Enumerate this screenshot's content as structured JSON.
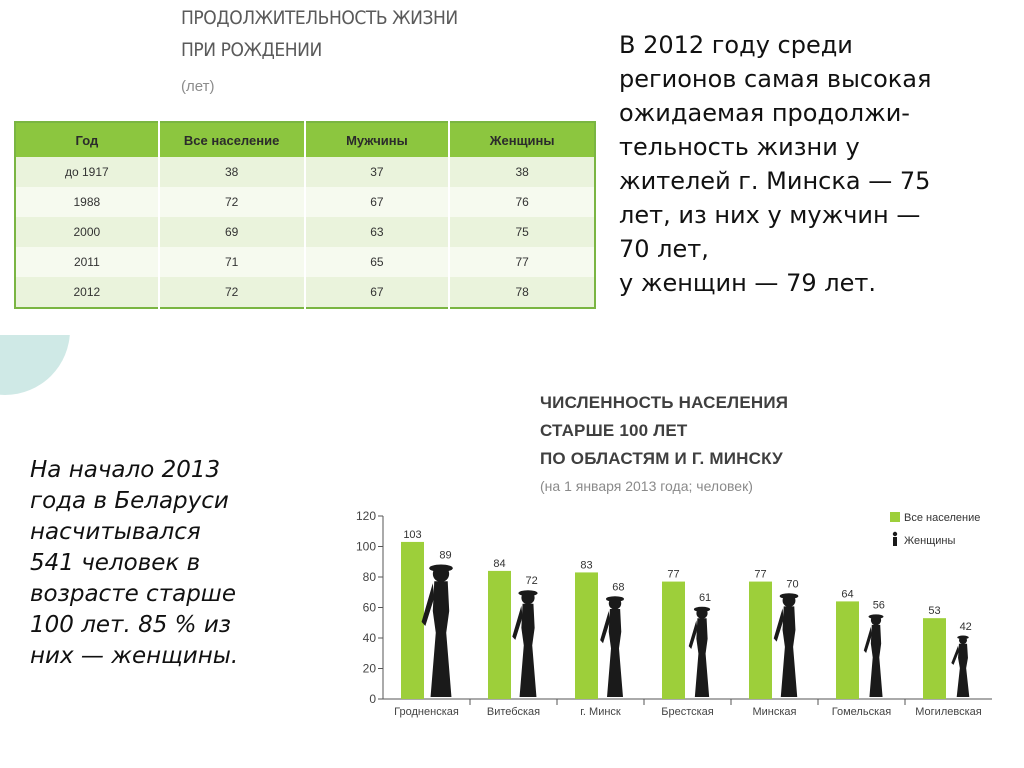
{
  "table_section": {
    "title_lines": [
      "ПРОДОЛЖИТЕЛЬНОСТЬ ЖИЗНИ",
      "ПРИ РОЖДЕНИИ"
    ],
    "unit": "(лет)",
    "headers": [
      "Год",
      "Все население",
      "Мужчины",
      "Женщины"
    ],
    "rows": [
      [
        "до 1917",
        "38",
        "37",
        "38"
      ],
      [
        "1988",
        "72",
        "67",
        "76"
      ],
      [
        "2000",
        "69",
        "63",
        "75"
      ],
      [
        "2011",
        "71",
        "65",
        "77"
      ],
      [
        "2012",
        "72",
        "67",
        "78"
      ]
    ]
  },
  "minsk_text": {
    "lines": [
      "В 2012 году среди",
      "регионов самая высокая",
      "ожидаемая продолжи-",
      "тельность жизни у",
      "жителей г. Минска — 75",
      "лет, из них у мужчин —",
      "70 лет,",
      "у женщин — 79 лет."
    ]
  },
  "centenarian_text": {
    "lines": [
      "На начало 2013",
      "года в Беларуси",
      "насчитывался",
      "541 человек в",
      "возрасте старше",
      "100 лет. 85 % из",
      "них — женщины."
    ]
  },
  "chart_data": {
    "type": "bar",
    "title_lines": [
      "ЧИСЛЕННОСТЬ НАСЕЛЕНИЯ",
      "СТАРШЕ 100 ЛЕТ",
      "ПО ОБЛАСТЯМ И Г. МИНСКУ"
    ],
    "subtitle": "(на 1 января 2013 года; человек)",
    "categories": [
      "Гродненская",
      "Витебская",
      "г. Минск",
      "Брестская",
      "Минская",
      "Гомельская",
      "Могилевская"
    ],
    "series": [
      {
        "name": "Все население",
        "values": [
          103,
          84,
          83,
          77,
          77,
          64,
          53
        ],
        "color": "#9dcf3a",
        "marker": "bar"
      },
      {
        "name": "Женщины",
        "values": [
          89,
          72,
          68,
          61,
          70,
          56,
          42
        ],
        "color": "#1a1a1a",
        "marker": "woman-silhouette"
      }
    ],
    "y_ticks": [
      "0",
      "20",
      "40",
      "60",
      "80",
      "100",
      "120"
    ],
    "ylim": [
      0,
      120
    ],
    "grid": false,
    "legend_position": "top-right"
  },
  "colors": {
    "table_header": "#8cc63f",
    "table_border": "#7ab542",
    "bar": "#9dcf3a",
    "silhouette": "#1a1a1a",
    "accent_arc": "#cfe9e6"
  }
}
